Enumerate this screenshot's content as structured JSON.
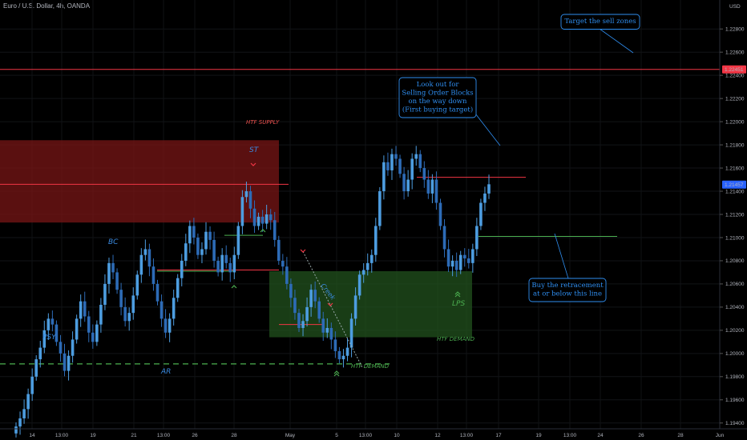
{
  "header": {
    "title": "Euro / U.S. Dollar, 4h, OANDA"
  },
  "axis": {
    "currency": "USD"
  },
  "chart_data": {
    "type": "candlestick",
    "title": "Euro / U.S. Dollar, 4h, OANDA",
    "ylim": [
      1.1935,
      1.2305
    ],
    "y_ticks": [
      "1.22800",
      "1.22600",
      "1.22400",
      "1.22200",
      "1.22000",
      "1.21800",
      "1.21600",
      "1.21400",
      "1.21200",
      "1.21000",
      "1.20800",
      "1.20600",
      "1.20400",
      "1.20200",
      "1.20000",
      "1.19800",
      "1.19600",
      "1.19400"
    ],
    "x_ticks": [
      "14",
      "13:00",
      "19",
      "21",
      "13:00",
      "26",
      "28",
      "May",
      "5",
      "13:00",
      "10",
      "12",
      "13:00",
      "17",
      "19",
      "13:00",
      "24",
      "26",
      "28",
      "Jun"
    ],
    "price_labels": {
      "top_level": "1.22451",
      "current": "1.21457"
    },
    "closes": [
      1.1937,
      1.1944,
      1.1952,
      1.1965,
      1.198,
      1.1995,
      1.2005,
      1.202,
      1.203,
      1.2025,
      1.201,
      1.2,
      1.1985,
      1.1998,
      1.2012,
      1.203,
      1.2045,
      1.2032,
      1.2018,
      1.201,
      1.2025,
      1.2042,
      1.206,
      1.2078,
      1.207,
      1.2055,
      1.204,
      1.2028,
      1.2035,
      1.205,
      1.2068,
      1.2085,
      1.209,
      1.2075,
      1.206,
      1.2045,
      1.203,
      1.2018,
      1.203,
      1.2048,
      1.2065,
      1.208,
      1.2095,
      1.211,
      1.21,
      1.2085,
      1.209,
      1.2105,
      1.2098,
      1.208,
      1.207,
      1.2085,
      1.2078,
      1.207,
      1.2085,
      1.211,
      1.2135,
      1.214,
      1.2125,
      1.211,
      1.2118,
      1.2112,
      1.212,
      1.2115,
      1.2098,
      1.208,
      1.2075,
      1.206,
      1.2048,
      1.2035,
      1.2022,
      1.2028,
      1.204,
      1.2055,
      1.2045,
      1.203,
      1.2018,
      1.2022,
      1.2012,
      1.2002,
      1.1995,
      1.1998,
      1.2005,
      1.203,
      1.205,
      1.2068,
      1.2072,
      1.2078,
      1.2085,
      1.211,
      1.214,
      1.2165,
      1.2158,
      1.2172,
      1.2168,
      1.2155,
      1.214,
      1.215,
      1.2168,
      1.2172,
      1.216,
      1.215,
      1.2138,
      1.215,
      1.213,
      1.211,
      1.209,
      1.2075,
      1.208,
      1.2072,
      1.2085,
      1.2082,
      1.2078,
      1.209,
      1.211,
      1.213,
      1.2138,
      1.2146
    ],
    "levels": [
      {
        "price": 1.22451,
        "color": "#f23645",
        "label": ""
      },
      {
        "price": 1.2152,
        "color": "#f23645",
        "label": ""
      },
      {
        "price": 1.2101,
        "color": "#4caf50",
        "label": ""
      },
      {
        "price": 1.1991,
        "color": "#4caf50",
        "label": ""
      }
    ],
    "zones": [
      {
        "name": "HTF SUPPLY",
        "color": "#ef5350"
      },
      {
        "name": "HTF DEMAND",
        "color": "#4caf50"
      },
      {
        "name": "HTF DEMAND",
        "color": "#4caf50"
      }
    ],
    "annotations": [
      "PSY",
      "BC",
      "AR",
      "ST",
      "LPS",
      "Creek"
    ],
    "callouts": [
      {
        "lines": [
          "Target the sell zones"
        ]
      },
      {
        "lines": [
          "Look out for",
          "Selling Order Blocks",
          "on the way down",
          "(First buying target)"
        ]
      },
      {
        "lines": [
          "Buy the retracement",
          "at or below this line"
        ]
      }
    ]
  }
}
